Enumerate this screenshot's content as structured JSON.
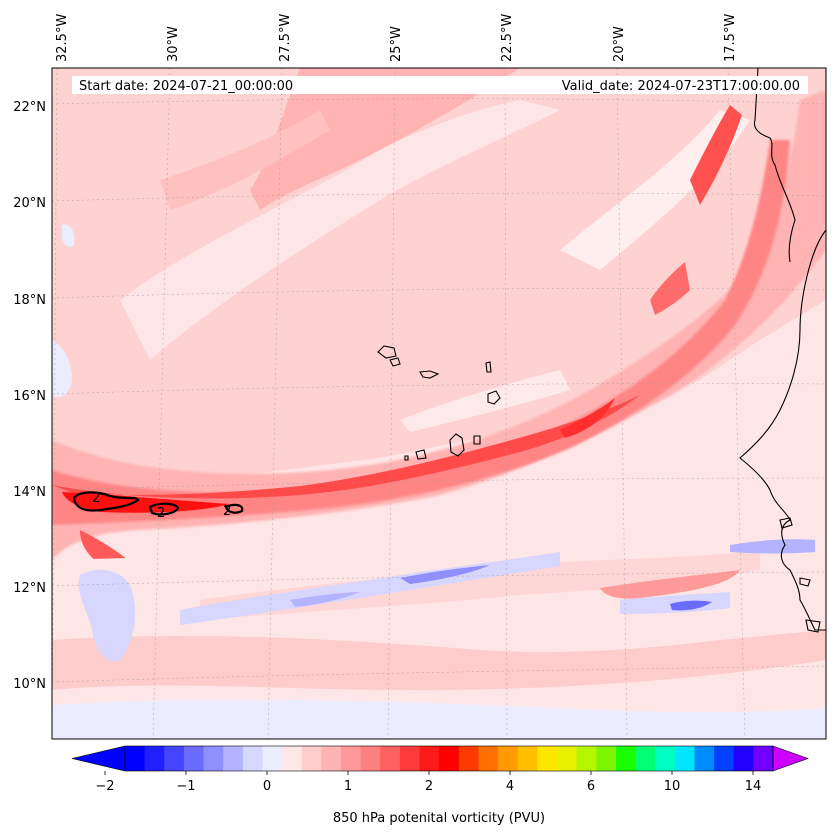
{
  "header": {
    "start_label": "Start date: 2024-07-21_00:00:00",
    "valid_label": "Valid_date: 2024-07-23T17:00:00.00"
  },
  "longitude_labels": [
    "32.5°W",
    "30°W",
    "27.5°W",
    "25°W",
    "22.5°W",
    "20°W",
    "17.5°W"
  ],
  "latitude_labels": [
    "22°N",
    "20°N",
    "18°N",
    "16°N",
    "14°N",
    "12°N",
    "10°N"
  ],
  "contour_labels": [
    "2",
    "2",
    "2"
  ],
  "colorbar": {
    "title": "850 hPa potenital vorticity (PVU)",
    "tick_labels": [
      "−2",
      "−1",
      "0",
      "1",
      "2",
      "4",
      "6",
      "10",
      "14"
    ],
    "colors": [
      "#0000ff",
      "#2020ff",
      "#4545ff",
      "#6b6bff",
      "#8f8fff",
      "#b3b3ff",
      "#d6d6ff",
      "#ececff",
      "#ffe6e6",
      "#ffcccc",
      "#ffb3b3",
      "#ff9999",
      "#ff8080",
      "#ff6060",
      "#ff3a3a",
      "#ff1a1a",
      "#ff0000",
      "#ff3a00",
      "#ff7000",
      "#ff9a00",
      "#ffbf00",
      "#ffe600",
      "#e6f000",
      "#b6f500",
      "#7df500",
      "#19ff00",
      "#00ff73",
      "#00ffc3",
      "#00e6ff",
      "#008cff",
      "#0040ff",
      "#2000ff",
      "#7000ff"
    ],
    "extend_low_color": "#0000ff",
    "extend_high_color": "#cc00ff"
  }
}
